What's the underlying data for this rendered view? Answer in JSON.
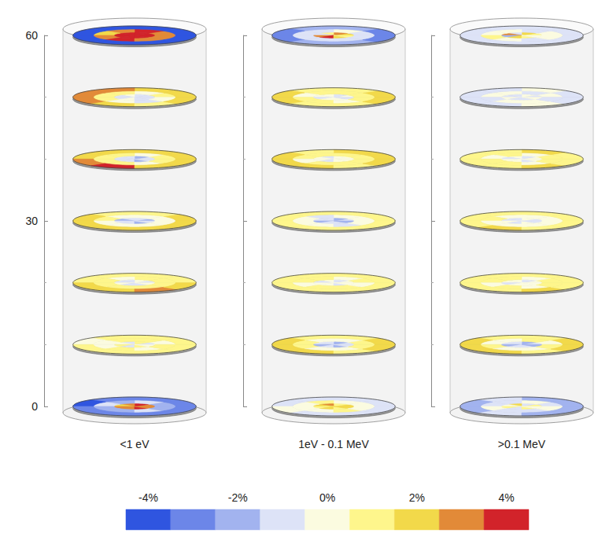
{
  "chart_data": {
    "type": "heatmap",
    "ylim": [
      0,
      60
    ],
    "yticks": [
      0,
      30,
      60
    ],
    "colorbar": {
      "range": [
        -4.5,
        4.5
      ],
      "ticks": [
        {
          "value": -4,
          "label": "-4%"
        },
        {
          "value": -2,
          "label": "-2%"
        },
        {
          "value": 0,
          "label": "0%"
        },
        {
          "value": 2,
          "label": "2%"
        },
        {
          "value": 4,
          "label": "4%"
        }
      ],
      "colors": [
        "#2f55e0",
        "#6c86e8",
        "#a2b3ef",
        "#dde3f7",
        "#fbfbe0",
        "#fef68c",
        "#f2d94a",
        "#e28a38",
        "#d2232a"
      ]
    },
    "panels": [
      {
        "title": "<1 eV",
        "discs": [
          {
            "height": 0,
            "cells": [
              [
                3,
                4,
                3,
                2,
                3,
                3,
                4,
                3
              ],
              [
                -2,
                -1,
                -2,
                -1,
                -2,
                -2,
                -1,
                -2
              ],
              [
                -3,
                -3,
                -3,
                -4,
                -3,
                -3,
                -3,
                -3
              ]
            ]
          },
          {
            "height": 10,
            "cells": [
              [
                -1,
                1,
                -1,
                0,
                1,
                -1,
                1,
                0
              ],
              [
                0,
                1,
                1,
                0,
                0,
                1,
                0,
                1
              ],
              [
                1,
                1,
                1,
                0,
                1,
                1,
                1,
                1
              ]
            ]
          },
          {
            "height": 20,
            "cells": [
              [
                -1,
                0,
                -1,
                -1,
                0,
                -1,
                -1,
                0
              ],
              [
                1,
                1,
                0,
                1,
                1,
                1,
                1,
                1
              ],
              [
                1,
                1,
                1,
                1,
                2,
                2,
                3,
                2
              ]
            ]
          },
          {
            "height": 30,
            "cells": [
              [
                -2,
                -1,
                -1,
                -2,
                -1,
                -1,
                -2,
                -1
              ],
              [
                0,
                0,
                0,
                1,
                0,
                0,
                0,
                0
              ],
              [
                2,
                1,
                1,
                2,
                2,
                2,
                2,
                2
              ]
            ]
          },
          {
            "height": 40,
            "cells": [
              [
                -1,
                -2,
                -1,
                -1,
                -1,
                -1,
                -2,
                -1
              ],
              [
                1,
                0,
                1,
                1,
                1,
                1,
                0,
                1
              ],
              [
                2,
                2,
                2,
                2,
                3,
                4,
                2,
                2
              ]
            ]
          },
          {
            "height": 50,
            "cells": [
              [
                -1,
                -1,
                0,
                -1,
                -1,
                0,
                -1,
                -1
              ],
              [
                1,
                0,
                1,
                1,
                1,
                0,
                -1,
                0
              ],
              [
                2,
                2,
                3,
                3,
                3,
                2,
                1,
                2
              ]
            ]
          },
          {
            "height": 60,
            "cells": [
              [
                4,
                4,
                4,
                4,
                4,
                4,
                4,
                4
              ],
              [
                3,
                4,
                3,
                2,
                3,
                4,
                3,
                3
              ],
              [
                -4,
                -4,
                -4,
                -4,
                -4,
                -4,
                -4,
                -4
              ]
            ]
          }
        ]
      },
      {
        "title": "1eV - 0.1 MeV",
        "discs": [
          {
            "height": 0,
            "cells": [
              [
                2,
                1,
                3,
                2,
                1,
                2,
                1,
                2
              ],
              [
                0,
                0,
                1,
                0,
                0,
                0,
                1,
                0
              ],
              [
                -1,
                -1,
                -1,
                -1,
                0,
                -1,
                -1,
                -1
              ]
            ]
          },
          {
            "height": 10,
            "cells": [
              [
                -1,
                -2,
                -1,
                -1,
                -2,
                -1,
                -2,
                -1
              ],
              [
                1,
                0,
                0,
                1,
                1,
                0,
                0,
                1
              ],
              [
                2,
                1,
                1,
                2,
                2,
                2,
                1,
                2
              ]
            ]
          },
          {
            "height": 20,
            "cells": [
              [
                0,
                -1,
                0,
                -1,
                0,
                0,
                -1,
                0
              ],
              [
                1,
                0,
                1,
                1,
                0,
                1,
                1,
                0
              ],
              [
                1,
                1,
                1,
                1,
                1,
                1,
                1,
                1
              ]
            ]
          },
          {
            "height": 30,
            "cells": [
              [
                -1,
                -2,
                -1,
                -1,
                -2,
                -1,
                -1,
                -2
              ],
              [
                0,
                0,
                -1,
                0,
                0,
                0,
                -1,
                0
              ],
              [
                1,
                1,
                1,
                1,
                1,
                1,
                1,
                1
              ]
            ]
          },
          {
            "height": 40,
            "cells": [
              [
                0,
                0,
                -1,
                0,
                0,
                -1,
                0,
                0
              ],
              [
                1,
                1,
                1,
                1,
                0,
                1,
                1,
                1
              ],
              [
                2,
                2,
                1,
                2,
                2,
                2,
                1,
                2
              ]
            ]
          },
          {
            "height": 50,
            "cells": [
              [
                0,
                -1,
                0,
                0,
                -1,
                0,
                0,
                -1
              ],
              [
                1,
                1,
                1,
                0,
                1,
                1,
                0,
                1
              ],
              [
                2,
                1,
                1,
                2,
                2,
                1,
                1,
                2
              ]
            ]
          },
          {
            "height": 60,
            "cells": [
              [
                2,
                3,
                1,
                -1,
                3,
                4,
                2,
                1
              ],
              [
                -1,
                0,
                -1,
                -1,
                -1,
                -1,
                -1,
                -1
              ],
              [
                -3,
                -2,
                -2,
                -3,
                -3,
                -2,
                -2,
                -3
              ]
            ]
          }
        ]
      },
      {
        "title": ">0.1 MeV",
        "discs": [
          {
            "height": 0,
            "cells": [
              [
                1,
                -1,
                2,
                0,
                1,
                -1,
                1,
                0
              ],
              [
                -1,
                0,
                -1,
                -1,
                0,
                -1,
                -1,
                0
              ],
              [
                -2,
                -2,
                -1,
                -2,
                -2,
                -1,
                -2,
                -2
              ]
            ]
          },
          {
            "height": 10,
            "cells": [
              [
                -1,
                -2,
                -1,
                -1,
                -2,
                -1,
                -1,
                -2
              ],
              [
                0,
                1,
                0,
                0,
                1,
                0,
                0,
                1
              ],
              [
                2,
                1,
                1,
                2,
                2,
                2,
                1,
                2
              ]
            ]
          },
          {
            "height": 20,
            "cells": [
              [
                0,
                -1,
                0,
                0,
                -1,
                0,
                0,
                0
              ],
              [
                1,
                0,
                1,
                1,
                0,
                1,
                0,
                1
              ],
              [
                1,
                1,
                1,
                1,
                1,
                1,
                2,
                1
              ]
            ]
          },
          {
            "height": 30,
            "cells": [
              [
                -1,
                0,
                -1,
                -1,
                0,
                -1,
                0,
                -1
              ],
              [
                0,
                0,
                0,
                1,
                0,
                0,
                0,
                0
              ],
              [
                1,
                1,
                1,
                1,
                1,
                2,
                1,
                1
              ]
            ]
          },
          {
            "height": 40,
            "cells": [
              [
                0,
                -1,
                0,
                -1,
                0,
                0,
                -1,
                0
              ],
              [
                1,
                0,
                1,
                0,
                1,
                1,
                0,
                1
              ],
              [
                1,
                2,
                1,
                1,
                1,
                1,
                2,
                1
              ]
            ]
          },
          {
            "height": 50,
            "cells": [
              [
                -1,
                0,
                -1,
                -1,
                0,
                -1,
                -1,
                0
              ],
              [
                0,
                -1,
                0,
                0,
                -1,
                0,
                0,
                -1
              ],
              [
                -1,
                0,
                -1,
                -1,
                -1,
                -1,
                0,
                -1
              ]
            ]
          },
          {
            "height": 60,
            "cells": [
              [
                1,
                2,
                -1,
                3,
                -2,
                2,
                1,
                0
              ],
              [
                0,
                -1,
                0,
                0,
                1,
                0,
                -1,
                0
              ],
              [
                -1,
                -1,
                -1,
                -1,
                -1,
                -1,
                -1,
                -1
              ]
            ]
          }
        ]
      }
    ]
  }
}
